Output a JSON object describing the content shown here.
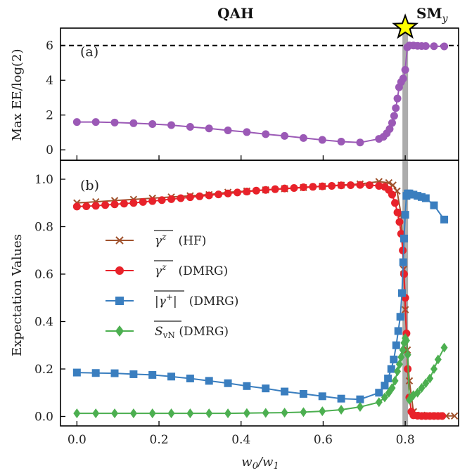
{
  "chart_data": [
    {
      "panel": "(a)",
      "type": "line",
      "ylabel": "Max EE/log(2)",
      "xlim": [
        -0.04,
        0.93
      ],
      "ylim": [
        -0.6,
        7.0
      ],
      "yticks": [
        0,
        2,
        4,
        6
      ],
      "reference_line": {
        "y": 6,
        "style": "dashed",
        "color": "#000000"
      },
      "series": [
        {
          "color": "#9b59b6",
          "marker": "circle",
          "x": [
            0.0,
            0.046,
            0.092,
            0.138,
            0.184,
            0.23,
            0.276,
            0.322,
            0.368,
            0.414,
            0.46,
            0.506,
            0.552,
            0.598,
            0.644,
            0.69,
            0.736,
            0.747,
            0.755,
            0.762,
            0.768,
            0.773,
            0.777,
            0.781,
            0.785,
            0.79,
            0.795,
            0.8,
            0.805,
            0.81,
            0.82,
            0.83,
            0.84,
            0.85,
            0.87,
            0.895
          ],
          "y": [
            1.6,
            1.6,
            1.57,
            1.53,
            1.48,
            1.42,
            1.32,
            1.23,
            1.12,
            1.02,
            0.9,
            0.8,
            0.68,
            0.57,
            0.47,
            0.42,
            0.63,
            0.75,
            0.95,
            1.2,
            1.55,
            1.95,
            2.4,
            2.95,
            3.6,
            3.9,
            4.1,
            4.6,
            5.9,
            6.0,
            6.0,
            5.98,
            5.97,
            5.97,
            5.96,
            5.95
          ]
        }
      ]
    },
    {
      "panel": "(b)",
      "type": "line",
      "ylabel": "Expectation Values",
      "xlabel": "w₀/w₁",
      "xlim": [
        -0.04,
        0.93
      ],
      "ylim": [
        -0.04,
        1.08
      ],
      "xticks": [
        0.0,
        0.2,
        0.4,
        0.6,
        0.8
      ],
      "yticks": [
        0.0,
        0.2,
        0.4,
        0.6,
        0.8,
        1.0
      ],
      "series": [
        {
          "name": "γ^z (HF)",
          "color": "#a0522d",
          "marker": "x",
          "x": [
            0.0,
            0.046,
            0.092,
            0.138,
            0.184,
            0.23,
            0.276,
            0.322,
            0.368,
            0.414,
            0.46,
            0.506,
            0.552,
            0.598,
            0.644,
            0.69,
            0.736,
            0.76,
            0.77,
            0.78,
            0.79,
            0.796,
            0.8,
            0.805,
            0.81,
            0.82,
            0.84,
            0.86,
            0.88,
            0.9,
            0.92
          ],
          "y": [
            0.9,
            0.905,
            0.91,
            0.915,
            0.92,
            0.925,
            0.93,
            0.935,
            0.945,
            0.95,
            0.955,
            0.96,
            0.965,
            0.97,
            0.975,
            0.98,
            0.99,
            0.985,
            0.975,
            0.95,
            0.85,
            0.62,
            0.45,
            0.28,
            0.15,
            0.02,
            0.005,
            0.003,
            0.003,
            0.002,
            0.002
          ]
        },
        {
          "name": "γ^z (DMRG)",
          "color": "#e8222a",
          "marker": "circle",
          "x": [
            0.0,
            0.023,
            0.046,
            0.069,
            0.092,
            0.115,
            0.138,
            0.161,
            0.184,
            0.207,
            0.23,
            0.253,
            0.276,
            0.299,
            0.322,
            0.345,
            0.368,
            0.391,
            0.414,
            0.437,
            0.46,
            0.483,
            0.506,
            0.529,
            0.552,
            0.575,
            0.598,
            0.621,
            0.644,
            0.667,
            0.69,
            0.713,
            0.736,
            0.75,
            0.76,
            0.768,
            0.775,
            0.781,
            0.786,
            0.79,
            0.794,
            0.797,
            0.8,
            0.803,
            0.806,
            0.81,
            0.815,
            0.82,
            0.83,
            0.84,
            0.85,
            0.86,
            0.87,
            0.88,
            0.89
          ],
          "y": [
            0.885,
            0.886,
            0.888,
            0.891,
            0.894,
            0.897,
            0.9,
            0.904,
            0.908,
            0.912,
            0.916,
            0.92,
            0.924,
            0.928,
            0.932,
            0.936,
            0.94,
            0.944,
            0.948,
            0.952,
            0.955,
            0.958,
            0.961,
            0.963,
            0.966,
            0.968,
            0.97,
            0.972,
            0.974,
            0.975,
            0.976,
            0.975,
            0.972,
            0.968,
            0.955,
            0.935,
            0.9,
            0.86,
            0.82,
            0.77,
            0.7,
            0.6,
            0.5,
            0.35,
            0.2,
            0.08,
            0.02,
            0.005,
            0.003,
            0.002,
            0.002,
            0.002,
            0.002,
            0.002,
            0.002
          ]
        },
        {
          "name": "|γ⁺| (DMRG)",
          "color": "#3a7ebf",
          "marker": "square",
          "x": [
            0.0,
            0.046,
            0.092,
            0.138,
            0.184,
            0.23,
            0.276,
            0.322,
            0.368,
            0.414,
            0.46,
            0.506,
            0.552,
            0.598,
            0.644,
            0.69,
            0.736,
            0.75,
            0.758,
            0.766,
            0.772,
            0.778,
            0.783,
            0.788,
            0.792,
            0.795,
            0.797,
            0.8,
            0.803,
            0.806,
            0.81,
            0.815,
            0.82,
            0.83,
            0.84,
            0.85,
            0.87,
            0.895
          ],
          "y": [
            0.185,
            0.183,
            0.182,
            0.178,
            0.175,
            0.168,
            0.16,
            0.15,
            0.14,
            0.128,
            0.118,
            0.105,
            0.095,
            0.085,
            0.075,
            0.072,
            0.1,
            0.13,
            0.16,
            0.2,
            0.24,
            0.3,
            0.36,
            0.42,
            0.52,
            0.65,
            0.75,
            0.85,
            0.93,
            0.94,
            0.94,
            0.935,
            0.935,
            0.93,
            0.925,
            0.92,
            0.89,
            0.83
          ]
        },
        {
          "name": "S_vN (DMRG)",
          "color": "#4caf50",
          "marker": "diamond",
          "x": [
            0.0,
            0.046,
            0.092,
            0.138,
            0.184,
            0.23,
            0.276,
            0.322,
            0.368,
            0.414,
            0.46,
            0.506,
            0.552,
            0.598,
            0.644,
            0.69,
            0.736,
            0.75,
            0.76,
            0.768,
            0.775,
            0.781,
            0.786,
            0.79,
            0.794,
            0.797,
            0.8,
            0.803,
            0.806,
            0.81,
            0.815,
            0.82,
            0.83,
            0.84,
            0.85,
            0.86,
            0.87,
            0.88,
            0.895
          ],
          "y": [
            0.013,
            0.013,
            0.013,
            0.013,
            0.013,
            0.013,
            0.013,
            0.013,
            0.013,
            0.014,
            0.015,
            0.016,
            0.018,
            0.022,
            0.028,
            0.04,
            0.06,
            0.08,
            0.1,
            0.12,
            0.15,
            0.19,
            0.22,
            0.25,
            0.28,
            0.31,
            0.33,
            0.32,
            0.26,
            0.07,
            0.08,
            0.09,
            0.1,
            0.12,
            0.14,
            0.16,
            0.2,
            0.24,
            0.29
          ]
        }
      ]
    }
  ],
  "figure": {
    "regions": [
      "QAH",
      "SM_y"
    ],
    "transition_x": 0.8,
    "star_color": "#ffff00"
  },
  "text": {
    "region_left": "QAH",
    "region_right": "SM",
    "region_right_sub": "y",
    "panel_a": "(a)",
    "panel_b": "(b)",
    "ylabel_a": "Max EE/log(2)",
    "ylabel_b": "Expectation Values",
    "xlabel_main": "w",
    "xlabel_sub0": "0",
    "xlabel_mid": "/w",
    "xlabel_sub1": "1",
    "legend": [
      {
        "sym": "γ",
        "sup": "z",
        "tail": "(HF)"
      },
      {
        "sym": "γ",
        "sup": "z",
        "tail": "(DMRG)"
      },
      {
        "sym": "|γ",
        "sup": "+",
        "after": "|",
        "tail": "(DMRG)"
      },
      {
        "sym": "S",
        "sub": "vN",
        "tail": "(DMRG)"
      }
    ]
  }
}
